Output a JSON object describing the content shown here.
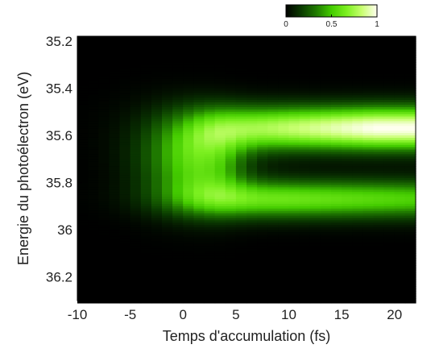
{
  "chart_data": {
    "type": "heatmap",
    "title": "",
    "xlabel": "Temps d'accumulation (fs)",
    "ylabel": "Energie du photoélectron (eV)",
    "xlim": [
      -10,
      22
    ],
    "ylim": [
      36.3,
      35.18
    ],
    "y_inverted": true,
    "x_ticks": [
      -10,
      -5,
      0,
      5,
      10,
      15,
      20
    ],
    "x_tick_labels": [
      "-10",
      "-5",
      "0",
      "5",
      "10",
      "15",
      "20"
    ],
    "y_ticks": [
      35.2,
      35.4,
      35.6,
      35.8,
      36,
      36.2
    ],
    "y_tick_labels": [
      "35.2",
      "35.4",
      "35.6",
      "35.8",
      "36",
      "36.2"
    ],
    "colorbar": {
      "range": [
        0,
        1
      ],
      "ticks": [
        0,
        0.5,
        1
      ],
      "tick_labels": [
        "0",
        "0.5",
        "1"
      ],
      "colormap": [
        "#000000",
        "#0a3a00",
        "#1f7a00",
        "#44cc00",
        "#7cf020",
        "#c8ff70",
        "#fffff0"
      ]
    },
    "grid": false,
    "features": [
      {
        "energy": 35.57,
        "width": 0.09,
        "peak_time": 18,
        "peak_value": 1.0
      },
      {
        "energy": 35.87,
        "width": 0.08,
        "peak_time": 10,
        "peak_value": 0.62
      },
      {
        "energy": 35.7,
        "dip": true
      }
    ]
  }
}
